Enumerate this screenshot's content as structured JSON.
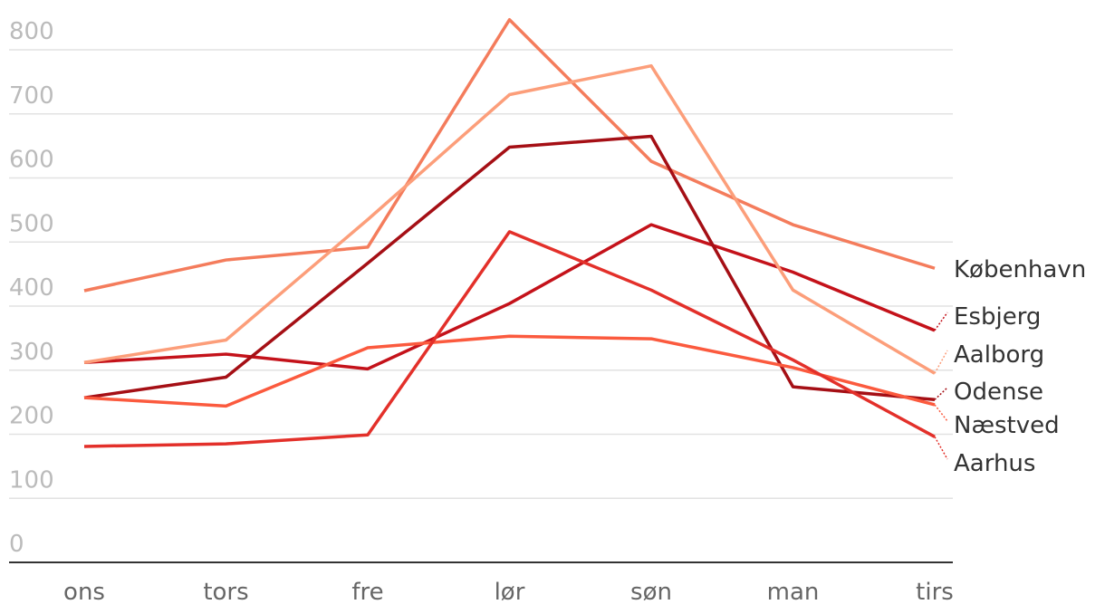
{
  "chart_data": {
    "type": "line",
    "categories": [
      "ons",
      "tors",
      "fre",
      "lør",
      "søn",
      "man",
      "tirs"
    ],
    "ylim": [
      0,
      800
    ],
    "yticks": [
      0,
      100,
      200,
      300,
      400,
      500,
      600,
      700,
      800
    ],
    "grid": true,
    "series": [
      {
        "name": "København",
        "color": "#f47c5c",
        "values": [
          424,
          472,
          492,
          847,
          626,
          527,
          459
        ]
      },
      {
        "name": "Esbjerg",
        "color": "#c4121a",
        "values": [
          312,
          325,
          302,
          404,
          527,
          453,
          362
        ]
      },
      {
        "name": "Aalborg",
        "color": "#fc9e7a",
        "values": [
          312,
          347,
          535,
          730,
          775,
          425,
          295
        ]
      },
      {
        "name": "Odense",
        "color": "#a50f15",
        "values": [
          257,
          289,
          467,
          648,
          665,
          274,
          254
        ]
      },
      {
        "name": "Næstved",
        "color": "#fb5a3e",
        "values": [
          257,
          244,
          335,
          353,
          349,
          304,
          246
        ]
      },
      {
        "name": "Aarhus",
        "color": "#e3302a",
        "values": [
          181,
          185,
          199,
          516,
          425,
          316,
          196
        ]
      }
    ]
  }
}
